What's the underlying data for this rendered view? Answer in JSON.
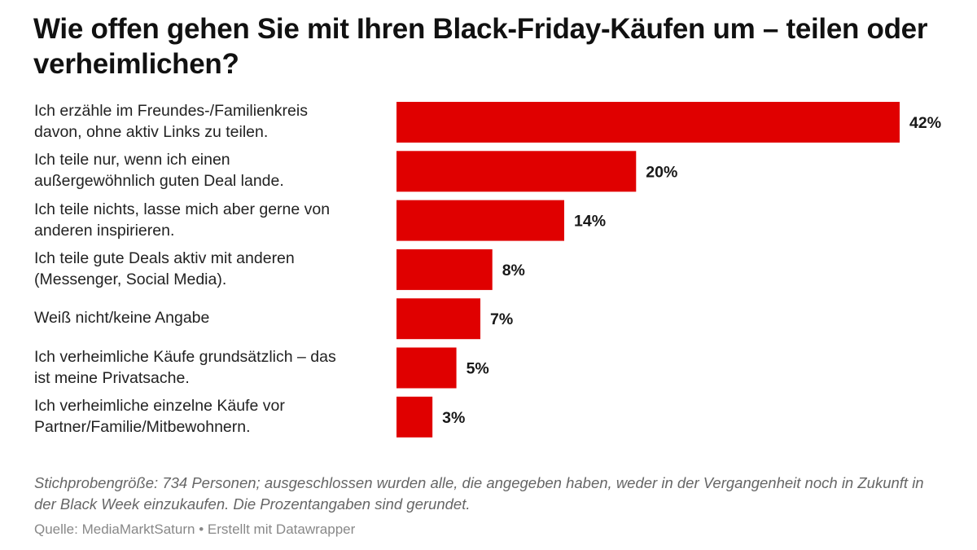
{
  "chart_data": {
    "type": "bar",
    "orientation": "horizontal",
    "title": "Wie offen gehen Sie mit Ihren Black-Friday-Käufen um – teilen oder verheimlichen?",
    "categories": [
      "Ich erzähle im Freundes-/Familienkreis\ndavon, ohne aktiv Links zu teilen.",
      "Ich teile nur, wenn ich einen\naußergewöhnlich guten Deal lande.",
      "Ich teile nichts, lasse mich aber gerne von\nanderen inspirieren.",
      "Ich teile gute Deals aktiv mit anderen\n(Messenger, Social Media).",
      "Weiß nicht/keine Angabe",
      "Ich verheimliche Käufe grundsätzlich – das\nist meine Privatsache.",
      "Ich verheimliche einzelne Käufe vor\nPartner/Familie/Mitbewohnern."
    ],
    "values": [
      42,
      20,
      14,
      8,
      7,
      5,
      3
    ],
    "value_labels": [
      "42%",
      "20%",
      "14%",
      "8%",
      "7%",
      "5%",
      "3%"
    ],
    "unit": "%",
    "xlim": [
      0,
      42
    ],
    "grid": false,
    "bar_color": "#e00000"
  },
  "notes": "Stichprobengröße: 734 Personen; ausgeschlossen wurden alle, die angegeben haben, weder in der Vergangenheit noch in Zukunft in der Black Week einzukaufen. Die Prozentangaben sind gerundet.",
  "source": "Quelle: MediaMarktSaturn • Erstellt mit Datawrapper"
}
